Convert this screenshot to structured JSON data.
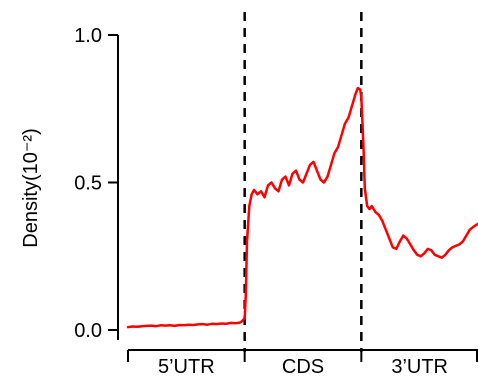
{
  "chart_data": {
    "type": "line",
    "ylabel": "Density(10⁻²)",
    "xlabel": "",
    "ylim": [
      0,
      1.0
    ],
    "xlim": [
      0,
      3
    ],
    "yticks": [
      {
        "value": 0.0,
        "label": "0.0"
      },
      {
        "value": 0.5,
        "label": "0.5"
      },
      {
        "value": 1.0,
        "label": "1.0"
      }
    ],
    "regions": [
      {
        "label": "5’UTR",
        "start": 0,
        "end": 1
      },
      {
        "label": "CDS",
        "start": 1,
        "end": 2
      },
      {
        "label": "3’UTR",
        "start": 2,
        "end": 3
      }
    ],
    "dividers": [
      1,
      2
    ],
    "series": [
      {
        "color": "#ff0000",
        "x": [
          0.0,
          0.04,
          0.08,
          0.12,
          0.16,
          0.2,
          0.24,
          0.28,
          0.32,
          0.36,
          0.4,
          0.44,
          0.48,
          0.52,
          0.56,
          0.6,
          0.64,
          0.68,
          0.72,
          0.76,
          0.8,
          0.84,
          0.88,
          0.92,
          0.96,
          0.98,
          1.0,
          1.01,
          1.02,
          1.04,
          1.06,
          1.08,
          1.11,
          1.14,
          1.17,
          1.2,
          1.23,
          1.26,
          1.29,
          1.32,
          1.35,
          1.38,
          1.41,
          1.44,
          1.47,
          1.5,
          1.53,
          1.56,
          1.59,
          1.62,
          1.65,
          1.68,
          1.71,
          1.74,
          1.77,
          1.8,
          1.83,
          1.86,
          1.89,
          1.92,
          1.95,
          1.97,
          1.99,
          2.0,
          2.01,
          2.02,
          2.03,
          2.05,
          2.07,
          2.09,
          2.12,
          2.15,
          2.18,
          2.21,
          2.24,
          2.27,
          2.3,
          2.33,
          2.36,
          2.39,
          2.42,
          2.45,
          2.48,
          2.51,
          2.54,
          2.57,
          2.6,
          2.63,
          2.66,
          2.69,
          2.72,
          2.75,
          2.78,
          2.81,
          2.84,
          2.87,
          2.9,
          2.93,
          2.96,
          3.0
        ],
        "y": [
          0.01,
          0.012,
          0.011,
          0.013,
          0.014,
          0.015,
          0.013,
          0.016,
          0.015,
          0.016,
          0.014,
          0.017,
          0.016,
          0.018,
          0.017,
          0.019,
          0.02,
          0.018,
          0.021,
          0.02,
          0.022,
          0.021,
          0.024,
          0.023,
          0.025,
          0.03,
          0.04,
          0.12,
          0.3,
          0.42,
          0.46,
          0.475,
          0.46,
          0.47,
          0.45,
          0.49,
          0.5,
          0.48,
          0.47,
          0.51,
          0.52,
          0.49,
          0.53,
          0.54,
          0.51,
          0.5,
          0.53,
          0.56,
          0.57,
          0.54,
          0.51,
          0.5,
          0.52,
          0.56,
          0.6,
          0.62,
          0.66,
          0.7,
          0.72,
          0.76,
          0.8,
          0.82,
          0.815,
          0.79,
          0.7,
          0.6,
          0.48,
          0.42,
          0.41,
          0.42,
          0.4,
          0.39,
          0.37,
          0.34,
          0.31,
          0.28,
          0.275,
          0.3,
          0.32,
          0.31,
          0.29,
          0.27,
          0.255,
          0.25,
          0.26,
          0.275,
          0.27,
          0.255,
          0.25,
          0.245,
          0.255,
          0.27,
          0.28,
          0.285,
          0.29,
          0.3,
          0.32,
          0.34,
          0.35,
          0.36
        ]
      }
    ]
  }
}
